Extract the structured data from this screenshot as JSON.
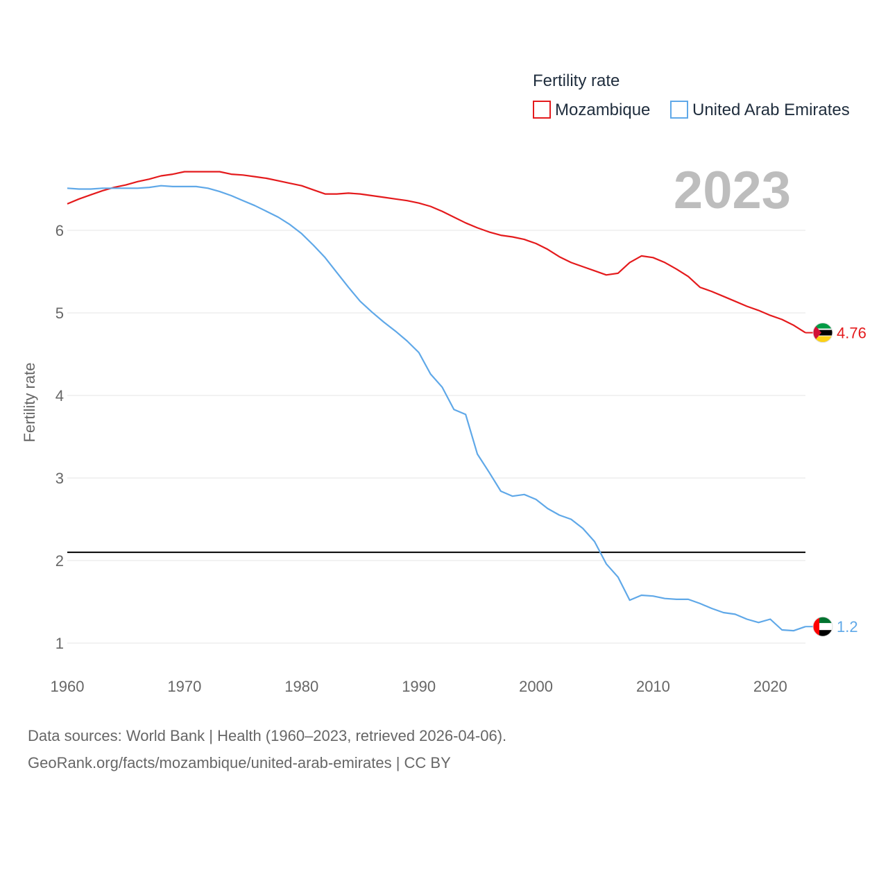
{
  "colors": {
    "mozambique": "#e41a1c",
    "uae": "#5fa8e8",
    "reference_line": "#000000",
    "grid": "#e6e6e6",
    "year": "#bdbdbd"
  },
  "chart_data": {
    "type": "line",
    "title": "",
    "legend_title": "Fertility rate",
    "legend_position": "top-right",
    "ylabel": "Fertility rate",
    "xlabel": "",
    "year_label": "2023",
    "xlim": [
      1960,
      2023
    ],
    "ylim": [
      0.5,
      7.0
    ],
    "x_ticks": [
      "1960",
      "1970",
      "1980",
      "1990",
      "2000",
      "2010",
      "2020"
    ],
    "y_ticks": [
      "1",
      "2",
      "3",
      "4",
      "5",
      "6"
    ],
    "grid": true,
    "reference_line": 2.1,
    "x": [
      1960,
      1961,
      1962,
      1963,
      1964,
      1965,
      1966,
      1967,
      1968,
      1969,
      1970,
      1971,
      1972,
      1973,
      1974,
      1975,
      1976,
      1977,
      1978,
      1979,
      1980,
      1981,
      1982,
      1983,
      1984,
      1985,
      1986,
      1987,
      1988,
      1989,
      1990,
      1991,
      1992,
      1993,
      1994,
      1995,
      1996,
      1997,
      1998,
      1999,
      2000,
      2001,
      2002,
      2003,
      2004,
      2005,
      2006,
      2007,
      2008,
      2009,
      2010,
      2011,
      2012,
      2013,
      2014,
      2015,
      2016,
      2017,
      2018,
      2019,
      2020,
      2021,
      2022,
      2023
    ],
    "series": [
      {
        "name": "Mozambique",
        "end_label": "4.76",
        "values": [
          6.32,
          6.38,
          6.43,
          6.48,
          6.52,
          6.55,
          6.59,
          6.62,
          6.66,
          6.68,
          6.71,
          6.71,
          6.71,
          6.71,
          6.68,
          6.67,
          6.65,
          6.63,
          6.6,
          6.57,
          6.54,
          6.49,
          6.44,
          6.44,
          6.45,
          6.44,
          6.42,
          6.4,
          6.38,
          6.36,
          6.33,
          6.29,
          6.23,
          6.16,
          6.09,
          6.03,
          5.98,
          5.94,
          5.92,
          5.89,
          5.84,
          5.77,
          5.68,
          5.61,
          5.56,
          5.51,
          5.46,
          5.48,
          5.61,
          5.69,
          5.67,
          5.61,
          5.53,
          5.44,
          5.31,
          5.26,
          5.2,
          5.14,
          5.08,
          5.03,
          4.97,
          4.92,
          4.85,
          4.76
        ]
      },
      {
        "name": "United Arab Emirates",
        "end_label": "1.2",
        "values": [
          6.51,
          6.5,
          6.5,
          6.51,
          6.51,
          6.51,
          6.51,
          6.52,
          6.54,
          6.53,
          6.53,
          6.53,
          6.51,
          6.47,
          6.42,
          6.36,
          6.3,
          6.23,
          6.16,
          6.07,
          5.96,
          5.82,
          5.67,
          5.49,
          5.31,
          5.14,
          5.01,
          4.89,
          4.78,
          4.66,
          4.52,
          4.26,
          4.1,
          3.83,
          3.77,
          3.29,
          3.07,
          2.84,
          2.78,
          2.8,
          2.74,
          2.63,
          2.55,
          2.5,
          2.39,
          2.23,
          1.96,
          1.8,
          1.52,
          1.58,
          1.57,
          1.54,
          1.53,
          1.53,
          1.48,
          1.42,
          1.37,
          1.35,
          1.29,
          1.25,
          1.29,
          1.16,
          1.15,
          1.2
        ]
      }
    ]
  },
  "source": {
    "line1": "Data sources: World Bank | Health (1960–2023, retrieved 2026-04-06).",
    "line2": "GeoRank.org/facts/mozambique/united-arab-emirates | CC BY"
  }
}
